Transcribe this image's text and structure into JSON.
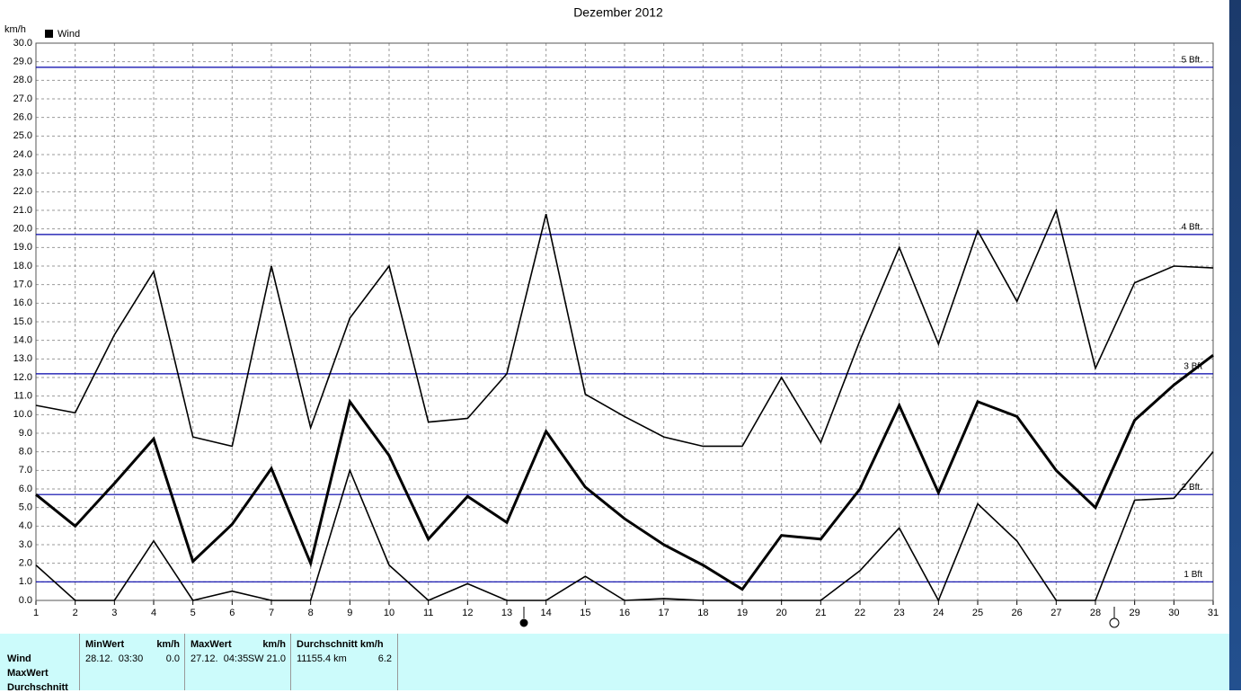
{
  "chart_data": {
    "type": "line",
    "title": "Dezember 2012",
    "y_label": "km/h",
    "x": [
      1,
      2,
      3,
      4,
      5,
      6,
      7,
      8,
      9,
      10,
      11,
      12,
      13,
      14,
      15,
      16,
      17,
      18,
      19,
      20,
      21,
      22,
      23,
      24,
      25,
      26,
      27,
      28,
      29,
      30,
      31
    ],
    "series": [
      {
        "color": "#000000",
        "values": [
          10.5,
          10.1,
          14.3,
          17.7,
          8.8,
          8.3,
          18.0,
          9.3,
          15.2,
          18.0,
          9.6,
          9.8,
          12.2,
          20.8,
          11.1,
          9.9,
          8.8,
          8.3,
          8.3,
          12.0,
          8.5,
          14.0,
          19.0,
          13.8,
          19.9,
          16.1,
          21.0,
          12.5,
          17.1,
          18.0,
          17.9
        ]
      },
      {
        "name": "Wind",
        "color": "#000000",
        "values": [
          5.7,
          4.0,
          6.3,
          8.7,
          2.1,
          4.1,
          7.1,
          2.0,
          10.7,
          7.8,
          3.3,
          5.6,
          4.2,
          9.1,
          6.1,
          4.4,
          3.0,
          1.9,
          0.6,
          3.5,
          3.3,
          6.0,
          10.5,
          5.8,
          10.7,
          9.9,
          7.0,
          5.0,
          9.7,
          11.6,
          13.2
        ]
      },
      {
        "color": "#000000",
        "values": [
          1.9,
          0,
          0,
          3.2,
          0,
          0.5,
          0,
          0,
          7.0,
          1.9,
          0,
          0.9,
          0,
          0,
          1.3,
          0,
          0.1,
          0,
          0,
          0,
          0,
          1.6,
          3.9,
          0,
          5.2,
          3.2,
          0,
          0,
          5.4,
          5.5,
          8.0
        ]
      }
    ],
    "xlim": [
      1,
      31
    ],
    "xticks": [
      1,
      2,
      3,
      4,
      5,
      6,
      7,
      8,
      9,
      10,
      11,
      12,
      13,
      14,
      15,
      16,
      17,
      18,
      19,
      20,
      21,
      22,
      23,
      24,
      25,
      26,
      27,
      28,
      29,
      30,
      31
    ],
    "ylim": [
      0,
      30
    ],
    "yticks": [
      {
        "value": 0,
        "label": "0.0"
      },
      {
        "value": 1,
        "label": "1.0"
      },
      {
        "value": 2,
        "label": "2.0"
      },
      {
        "value": 3,
        "label": "3.0"
      },
      {
        "value": 4,
        "label": "4.0"
      },
      {
        "value": 5,
        "label": "5.0"
      },
      {
        "value": 6,
        "label": "6.0"
      },
      {
        "value": 7,
        "label": "7.0"
      },
      {
        "value": 8,
        "label": "8.0"
      },
      {
        "value": 9,
        "label": "9.0"
      },
      {
        "value": 10,
        "label": "10.0"
      },
      {
        "value": 11,
        "label": "11.0"
      },
      {
        "value": 12,
        "label": "12.0"
      },
      {
        "value": 13,
        "label": "13.0"
      },
      {
        "value": 14,
        "label": "14.0"
      },
      {
        "value": 15,
        "label": "15.0"
      },
      {
        "value": 16,
        "label": "16.0"
      },
      {
        "value": 17,
        "label": "17.0"
      },
      {
        "value": 18,
        "label": "18.0"
      },
      {
        "value": 19,
        "label": "19.0"
      },
      {
        "value": 20,
        "label": "20.0"
      },
      {
        "value": 21,
        "label": "21.0"
      },
      {
        "value": 22,
        "label": "22.0"
      },
      {
        "value": 23,
        "label": "23.0"
      },
      {
        "value": 24,
        "label": "24.0"
      },
      {
        "value": 25,
        "label": "25.0"
      },
      {
        "value": 26,
        "label": "26.0"
      },
      {
        "value": 27,
        "label": "27.0"
      },
      {
        "value": 28,
        "label": "28.0"
      },
      {
        "value": 29,
        "label": "29.0"
      },
      {
        "value": 30,
        "label": "30.0"
      }
    ],
    "grid": true,
    "legend": "upper left",
    "reference_lines": [
      {
        "value": 1.0,
        "label": "1 Bft"
      },
      {
        "value": 5.7,
        "label": "2 Bft."
      },
      {
        "value": 12.2,
        "label": "3 Bft"
      },
      {
        "value": 19.7,
        "label": "4 Bft."
      },
      {
        "value": 28.7,
        "label": "5 Bft."
      }
    ],
    "reference_color": "#0000aa"
  },
  "panel": {
    "row_labels": [
      "Wind",
      "MaxWert",
      "Durchschnitt"
    ],
    "columns": [
      {
        "header": "MinWert",
        "unit": "km/h",
        "time": "28.12.  03:30",
        "value": "0.0"
      },
      {
        "header": "MaxWert",
        "unit": "km/h",
        "time": "27.12.  04:35",
        "value": "SW 21.0"
      },
      {
        "header": "Durchschnitt km/h",
        "time": "11155.4 km",
        "value": "6.2"
      }
    ]
  }
}
